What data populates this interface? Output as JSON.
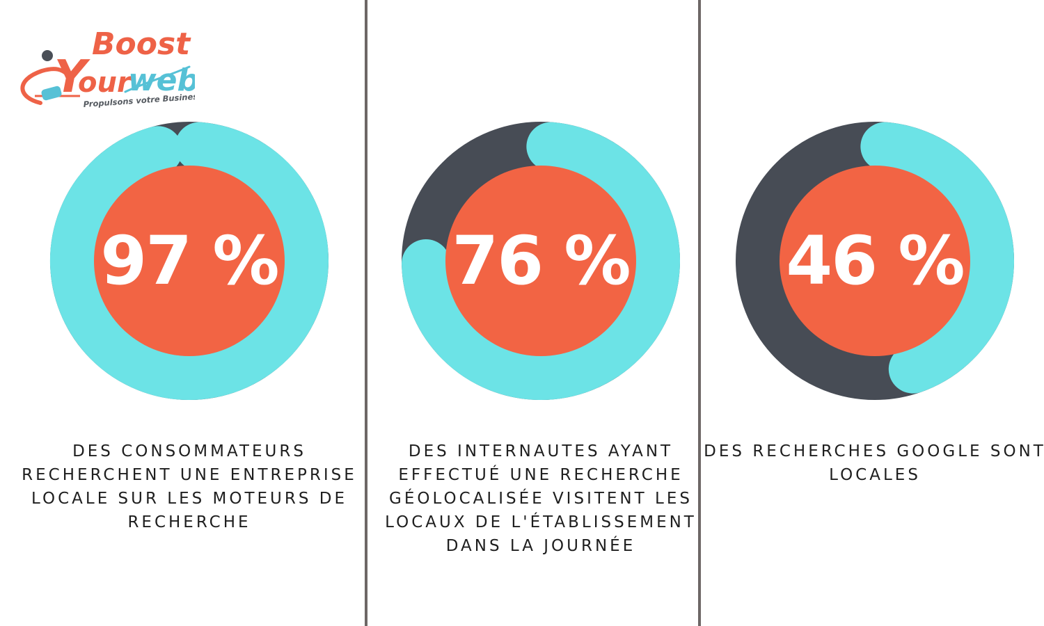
{
  "logo": {
    "word_boost": "Boost",
    "word_y": "Y",
    "word_our": "our",
    "word_web": "web",
    "tagline": "Propulsons votre Business"
  },
  "chart_data": [
    {
      "type": "pie",
      "value": 97,
      "label": "97 %",
      "caption": "DES CONSOMMATEURS RECHERCHENT UNE ENTREPRISE LOCALE SUR LES MOTEURS DE RECHERCHE"
    },
    {
      "type": "pie",
      "value": 76,
      "label": "76 %",
      "caption": "DES INTERNAUTES AYANT EFFECTUÉ UNE RECHERCHE GÉOLOCALISÉE VISITENT LES LOCAUX DE L'ÉTABLISSEMENT DANS LA JOURNÉE"
    },
    {
      "type": "pie",
      "value": 46,
      "label": "46 %",
      "caption": "DES RECHERCHES GOOGLE SONT LOCALES"
    }
  ],
  "colors": {
    "filled": "#6ce3e6",
    "track": "#474c55",
    "center": "#f26444",
    "text": "#ffffff",
    "divider": "#6d6766"
  }
}
